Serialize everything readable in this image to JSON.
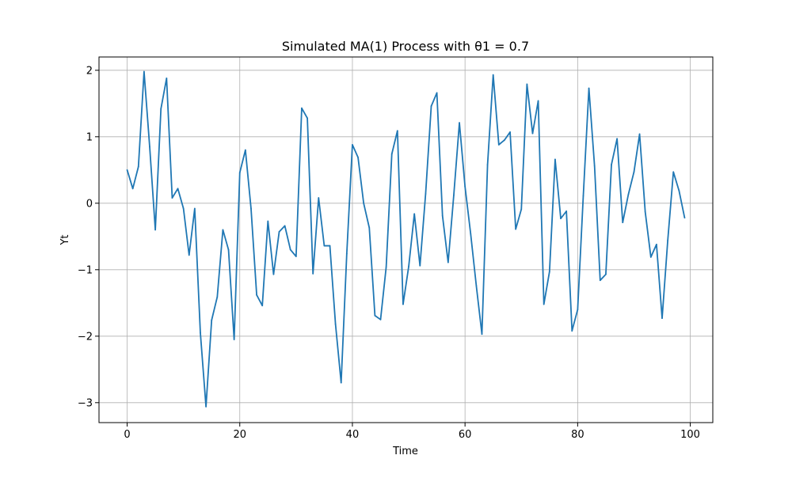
{
  "chart_data": {
    "type": "line",
    "title": "Simulated MA(1) Process with θ1 = 0.7",
    "xlabel": "Time",
    "ylabel": "Yt",
    "xlim": [
      -5,
      104
    ],
    "ylim": [
      -3.3,
      2.2
    ],
    "xticks": [
      0,
      20,
      40,
      60,
      80,
      100
    ],
    "yticks": [
      2,
      1,
      0,
      -1,
      -2,
      -3
    ],
    "xtick_labels": [
      "0",
      "20",
      "40",
      "60",
      "80",
      "100"
    ],
    "ytick_labels": [
      "2",
      "1",
      "0",
      "−1",
      "−2",
      "−3"
    ],
    "grid": true,
    "line_color": "#1f77b4",
    "series": [
      {
        "x": [
          0,
          1,
          2,
          3,
          4,
          5,
          6,
          7,
          8,
          9,
          10,
          11,
          12,
          13,
          14,
          15,
          16,
          17,
          18,
          19,
          20,
          21,
          22,
          23,
          24,
          25,
          26,
          27,
          28,
          29,
          30,
          31,
          32,
          33,
          34,
          35,
          36,
          37,
          38,
          39,
          40,
          41,
          42,
          43,
          44,
          45,
          46,
          47,
          48,
          49,
          50,
          51,
          52,
          53,
          54,
          55,
          56,
          57,
          58,
          59,
          60,
          61,
          62,
          63,
          64,
          65,
          66,
          67,
          68,
          69,
          70,
          71,
          72,
          73,
          74,
          75,
          76,
          77,
          78,
          79,
          80,
          81,
          82,
          83,
          84,
          85,
          86,
          87,
          88,
          89,
          90,
          91,
          92,
          93,
          94,
          95,
          96,
          97,
          98,
          99
        ],
        "values": [
          0.5,
          0.22,
          0.55,
          1.98,
          0.85,
          -0.4,
          1.42,
          1.88,
          0.08,
          0.22,
          -0.08,
          -0.78,
          -0.08,
          -1.95,
          -3.06,
          -1.76,
          -1.41,
          -0.4,
          -0.7,
          -2.05,
          0.46,
          0.8,
          -0.08,
          -1.38,
          -1.54,
          -0.27,
          -1.07,
          -0.43,
          -0.34,
          -0.7,
          -0.8,
          1.43,
          1.28,
          -1.06,
          0.08,
          -0.64,
          -0.64,
          -1.82,
          -2.7,
          -0.76,
          0.88,
          0.69,
          0.0,
          -0.37,
          -1.69,
          -1.75,
          -0.96,
          0.74,
          1.09,
          -1.52,
          -0.95,
          -0.16,
          -0.94,
          0.14,
          1.46,
          1.66,
          -0.19,
          -0.89,
          0.12,
          1.21,
          0.25,
          -0.46,
          -1.24,
          -1.97,
          0.58,
          1.93,
          0.88,
          0.95,
          1.07,
          -0.39,
          -0.09,
          1.79,
          1.05,
          1.54,
          -1.52,
          -1.03,
          0.66,
          -0.23,
          -0.12,
          -1.92,
          -1.6,
          0.11,
          1.73,
          0.56,
          -1.16,
          -1.07,
          0.58,
          0.97,
          -0.29,
          0.13,
          0.47,
          1.04,
          -0.13,
          -0.81,
          -0.62,
          -1.73,
          -0.56,
          0.47,
          0.19,
          -0.22
        ]
      }
    ]
  }
}
